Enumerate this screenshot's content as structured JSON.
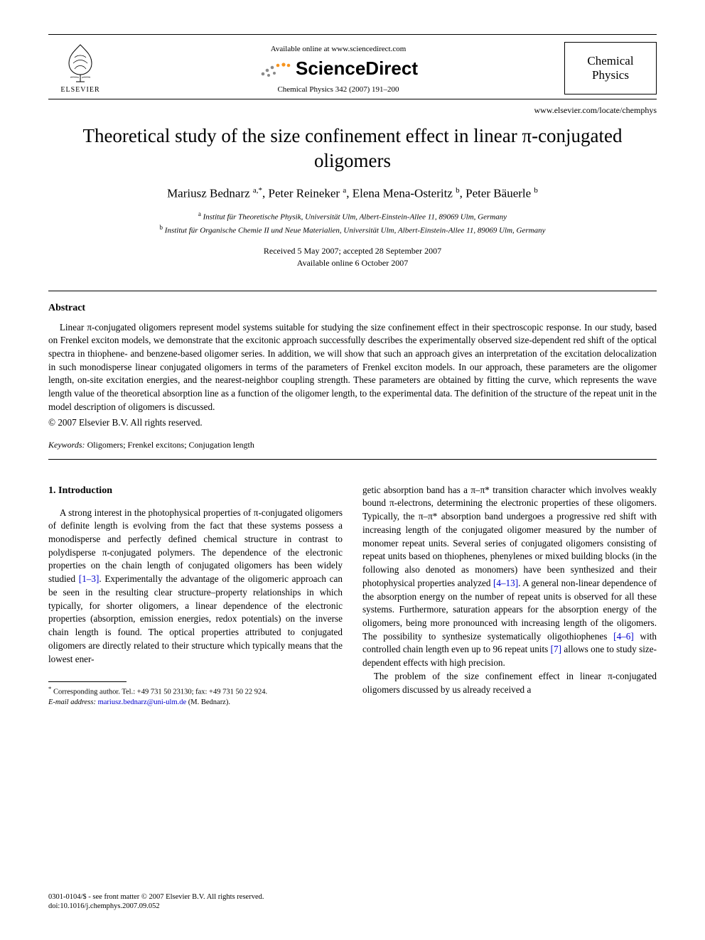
{
  "header": {
    "elsevier_label": "ELSEVIER",
    "available_line": "Available online at www.sciencedirect.com",
    "sd_brand": "ScienceDirect",
    "citation": "Chemical Physics 342 (2007) 191–200",
    "journal_box_line1": "Chemical",
    "journal_box_line2": "Physics",
    "journal_url": "www.elsevier.com/locate/chemphys"
  },
  "title": "Theoretical study of the size confinement effect in linear π-conjugated oligomers",
  "authors_html": "Mariusz Bednarz <sup>a,*</sup>, Peter Reineker <sup>a</sup>, Elena Mena-Osteritz <sup>b</sup>, Peter Bäuerle <sup>b</sup>",
  "affiliations": {
    "a": "Institut für Theoretische Physik, Universität Ulm, Albert-Einstein-Allee 11, 89069 Ulm, Germany",
    "b": "Institut für Organische Chemie II und Neue Materialien, Universität Ulm, Albert-Einstein-Allee 11, 89069 Ulm, Germany"
  },
  "dates": {
    "received_accepted": "Received 5 May 2007; accepted 28 September 2007",
    "online": "Available online 6 October 2007"
  },
  "abstract": {
    "heading": "Abstract",
    "body": "Linear π-conjugated oligomers represent model systems suitable for studying the size confinement effect in their spectroscopic response. In our study, based on Frenkel exciton models, we demonstrate that the excitonic approach successfully describes the experimentally observed size-dependent red shift of the optical spectra in thiophene- and benzene-based oligomer series. In addition, we will show that such an approach gives an interpretation of the excitation delocalization in such monodisperse linear conjugated oligomers in terms of the parameters of Frenkel exciton models. In our approach, these parameters are the oligomer length, on-site excitation energies, and the nearest-neighbor coupling strength. These parameters are obtained by fitting the curve, which represents the wave length value of the theoretical absorption line as a function of the oligomer length, to the experimental data. The definition of the structure of the repeat unit in the model description of oligomers is discussed.",
    "copyright": "© 2007 Elsevier B.V. All rights reserved."
  },
  "keywords": {
    "label": "Keywords:",
    "text": "Oligomers; Frenkel excitons; Conjugation length"
  },
  "section1": {
    "heading": "1. Introduction",
    "left_para": "A strong interest in the photophysical properties of π-conjugated oligomers of definite length is evolving from the fact that these systems possess a monodisperse and perfectly defined chemical structure in contrast to polydisperse π-conjugated polymers. The dependence of the electronic properties on the chain length of conjugated oligomers has been widely studied [1–3]. Experimentally the advantage of the oligomeric approach can be seen in the resulting clear structure–property relationships in which typically, for shorter oligomers, a linear dependence of the electronic properties (absorption, emission energies, redox potentials) on the inverse chain length is found. The optical properties attributed to conjugated oligomers are directly related to their structure which typically means that the lowest ener-",
    "right_para1": "getic absorption band has a π–π* transition character which involves weakly bound π-electrons, determining the electronic properties of these oligomers. Typically, the π–π* absorption band undergoes a progressive red shift with increasing length of the conjugated oligomer measured by the number of monomer repeat units. Several series of conjugated oligomers consisting of repeat units based on thiophenes, phenylenes or mixed building blocks (in the following also denoted as monomers) have been synthesized and their photophysical properties analyzed [4–13]. A general non-linear dependence of the absorption energy on the number of repeat units is observed for all these systems. Furthermore, saturation appears for the absorption energy of the oligomers, being more pronounced with increasing length of the oligomers. The possibility to synthesize systematically oligothiophenes [4–6] with controlled chain length even up to 96 repeat units [7] allows one to study size-dependent effects with high precision.",
    "right_para2": "The problem of the size confinement effect in linear π-conjugated oligomers discussed by us already received a"
  },
  "footnote": {
    "corr": "Corresponding author. Tel.: +49 731 50 23130; fax: +49 731 50 22 924.",
    "email_label": "E-mail address:",
    "email": "mariusz.bednarz@uni-ulm.de",
    "email_owner": "(M. Bednarz)."
  },
  "bottom": {
    "line1": "0301-0104/$ - see front matter © 2007 Elsevier B.V. All rights reserved.",
    "line2": "doi:10.1016/j.chemphys.2007.09.052"
  },
  "colors": {
    "link": "#0000cc",
    "sd_orange": "#f7941e",
    "sd_gray": "#8a8a8a",
    "text": "#000000",
    "bg": "#ffffff"
  }
}
